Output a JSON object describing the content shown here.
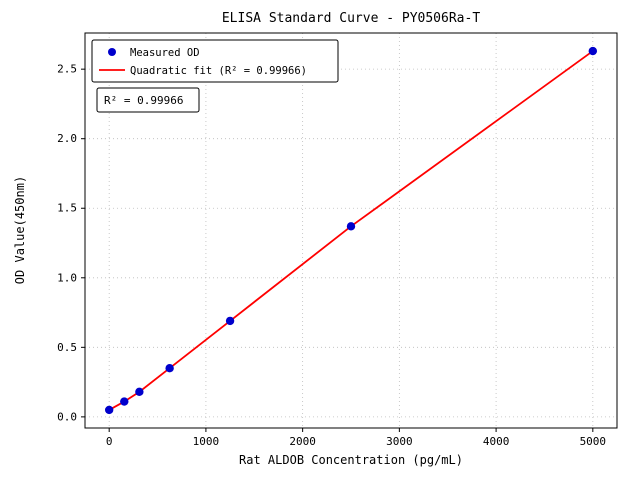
{
  "chart_data": {
    "type": "scatter",
    "title": "ELISA Standard Curve - PY0506Ra-T",
    "xlabel": "Rat ALDOB Concentration (pg/mL)",
    "ylabel": "OD Value(450nm)",
    "x": [
      0,
      156,
      312,
      625,
      1250,
      2500,
      5000
    ],
    "y": [
      0.05,
      0.11,
      0.18,
      0.35,
      0.69,
      1.37,
      2.63
    ],
    "series": [
      {
        "name": "Measured OD",
        "type": "scatter",
        "color": "#0000cc"
      },
      {
        "name": "Quadratic fit (R² = 0.99966)",
        "type": "line",
        "color": "#ff0000"
      }
    ],
    "xticks": [
      0,
      1000,
      2000,
      3000,
      4000,
      5000
    ],
    "yticks": [
      0.0,
      0.5,
      1.0,
      1.5,
      2.0,
      2.5
    ],
    "xlim": [
      -250,
      5250
    ],
    "ylim": [
      -0.08,
      2.76
    ],
    "grid": true,
    "legend_position": "upper left",
    "annotation": "R² = 0.99966",
    "r_squared": 0.99966,
    "colors": {
      "points": "#0000cc",
      "fit_line": "#ff0000",
      "grid": "#bcbcbc"
    }
  }
}
